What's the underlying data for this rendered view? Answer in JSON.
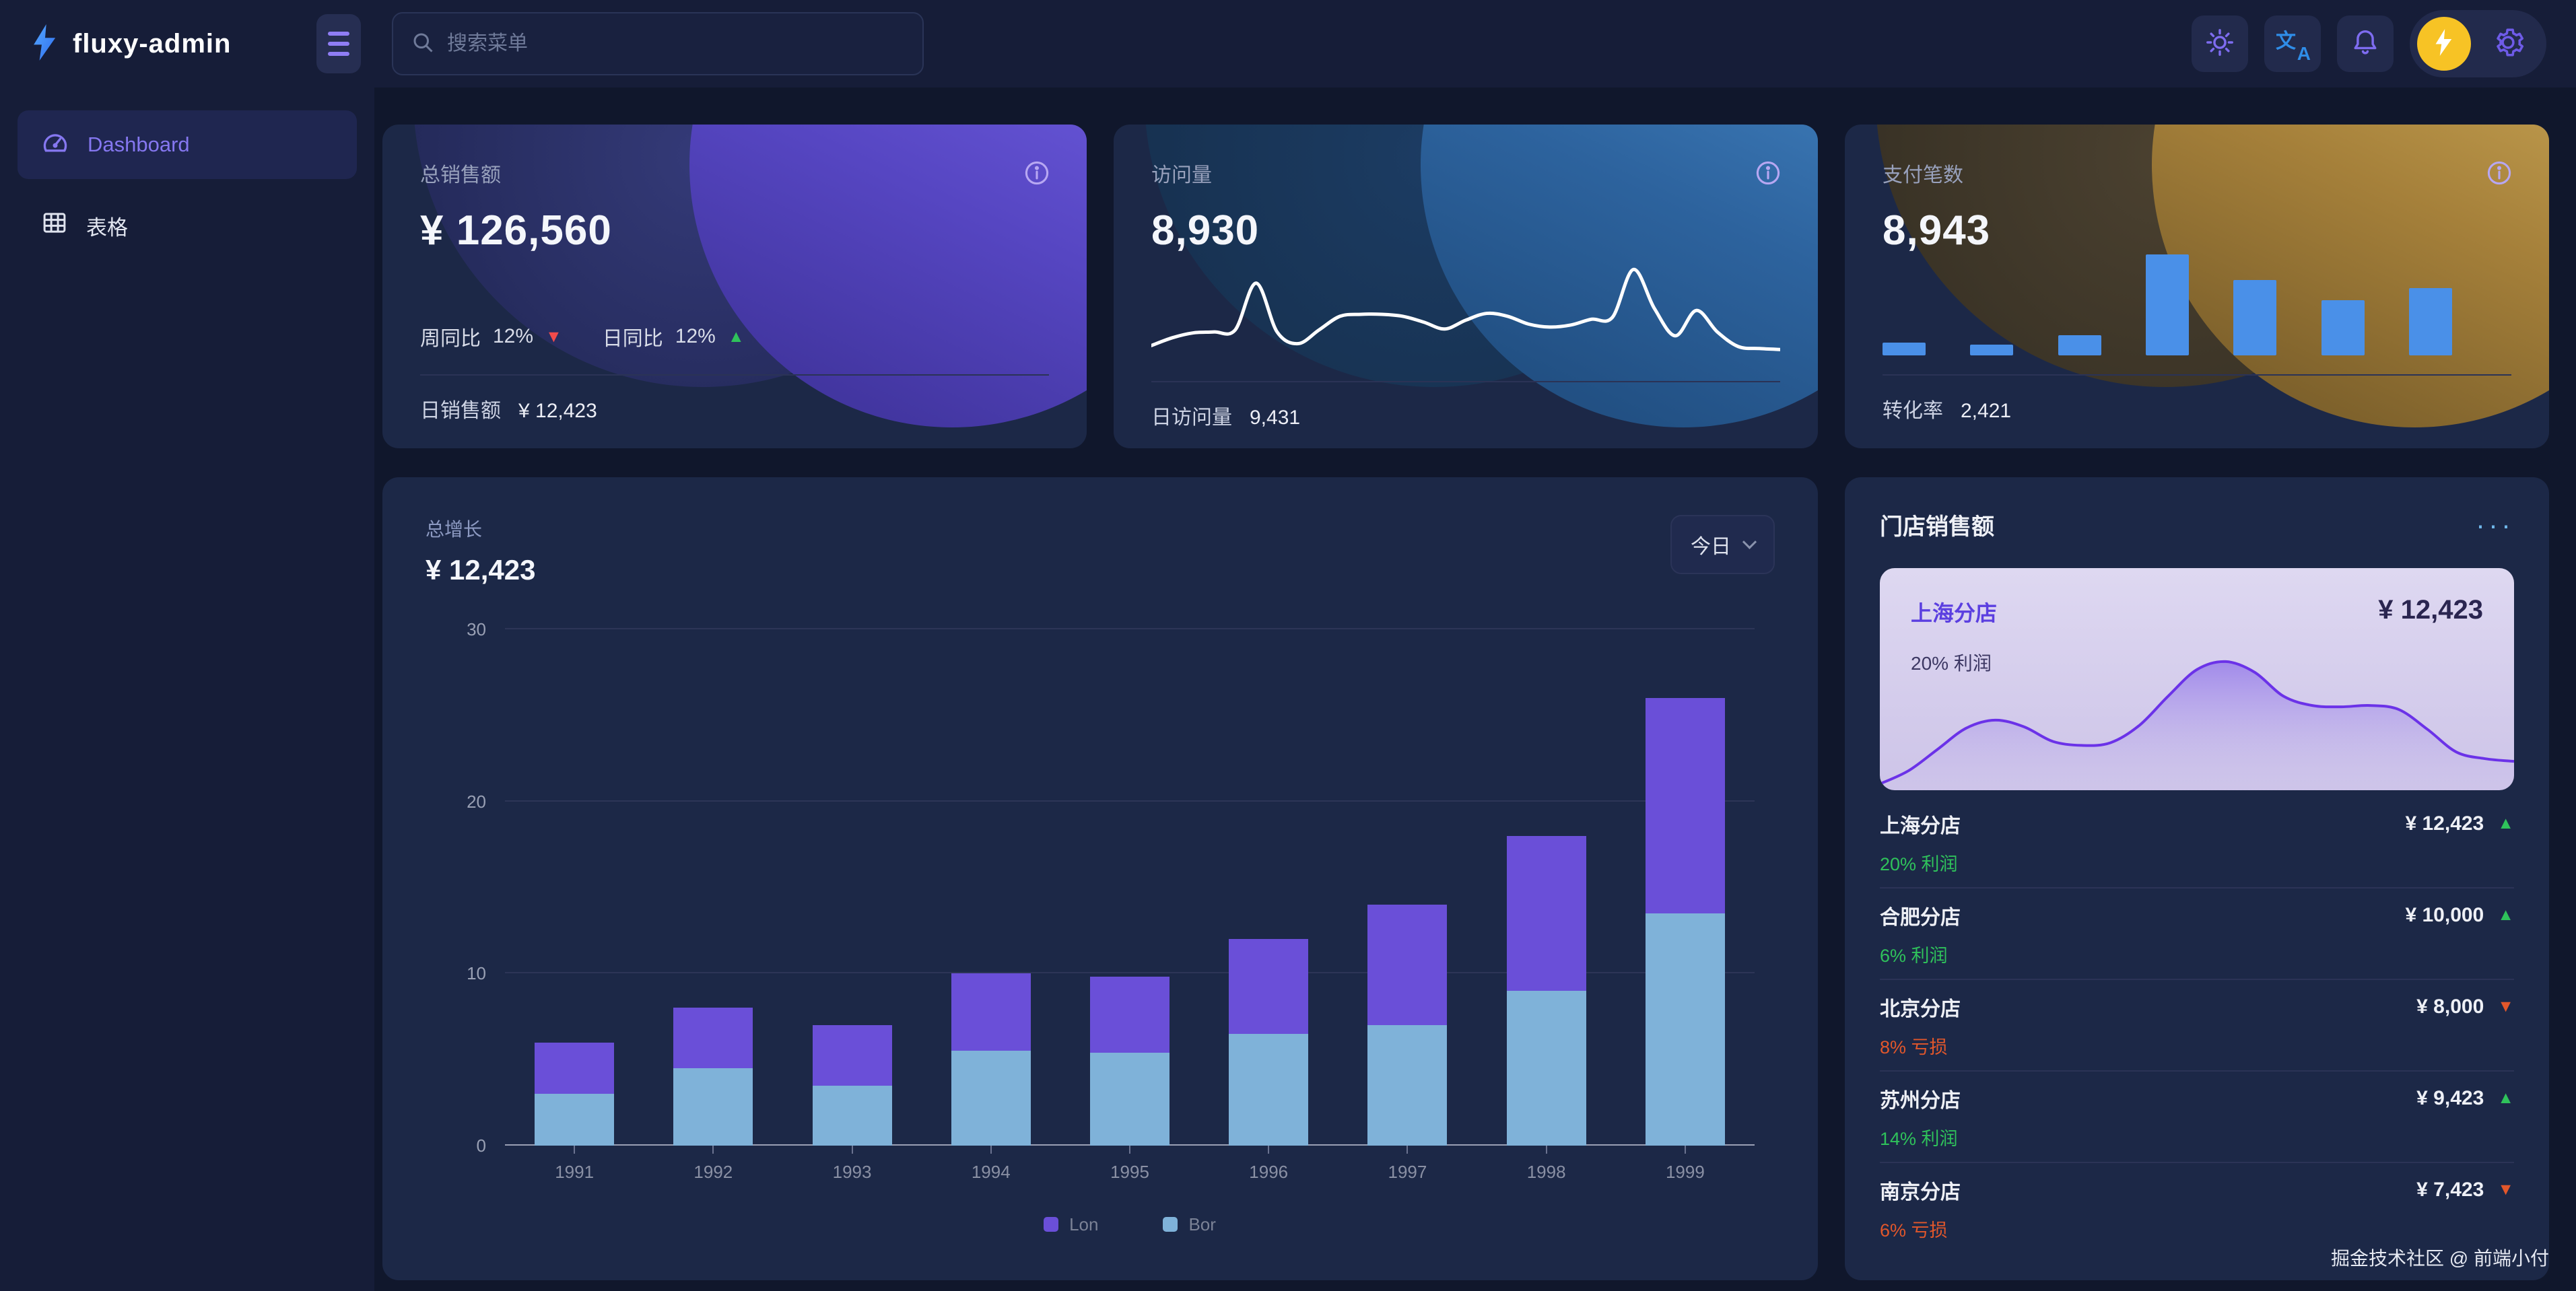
{
  "topbar": {
    "logo_text": "fluxy-admin",
    "search_placeholder": "搜索菜单"
  },
  "sidebar": {
    "items": [
      {
        "label": "Dashboard",
        "icon": "dashboard-gauge-icon",
        "active": true
      },
      {
        "label": "表格",
        "icon": "table-grid-icon",
        "active": false
      }
    ]
  },
  "stat_cards": {
    "sales": {
      "title": "总销售额",
      "value": "¥ 126,560",
      "week_label": "周同比",
      "week_value": "12%",
      "week_arrow": "▼",
      "day_label": "日同比",
      "day_value": "12%",
      "day_arrow": "▲",
      "footer_label": "日销售额",
      "footer_value": "¥ 12,423"
    },
    "visits": {
      "title": "访问量",
      "value": "8,930",
      "footer_label": "日访问量",
      "footer_value": "9,431"
    },
    "payments": {
      "title": "支付笔数",
      "value": "8,943",
      "footer_label": "转化率",
      "footer_value": "2,421"
    }
  },
  "growth": {
    "title": "总增长",
    "value": "¥ 12,423",
    "range_label": "今日"
  },
  "stores": {
    "title": "门店销售额",
    "more_icon": "···",
    "highlight": {
      "name": "上海分店",
      "value": "¥ 12,423",
      "sub": "20% 利润"
    },
    "items": [
      {
        "name": "上海分店",
        "value": "¥ 12,423",
        "trend": "up",
        "sub": "20% 利润",
        "sub_type": "profit"
      },
      {
        "name": "合肥分店",
        "value": "¥ 10,000",
        "trend": "up",
        "sub": "6% 利润",
        "sub_type": "profit"
      },
      {
        "name": "北京分店",
        "value": "¥ 8,000",
        "trend": "down",
        "sub": "8% 亏损",
        "sub_type": "loss"
      },
      {
        "name": "苏州分店",
        "value": "¥ 9,423",
        "trend": "up",
        "sub": "14% 利润",
        "sub_type": "profit"
      },
      {
        "name": "南京分店",
        "value": "¥ 7,423",
        "trend": "down",
        "sub": "6% 亏损",
        "sub_type": "loss"
      }
    ]
  },
  "footer": {
    "credit": "掘金技术社区 @ 前端小付"
  },
  "colors": {
    "accent_purple": "#8577f0",
    "bar_purple": "#6a4fd8",
    "bar_blue": "#7fb2d9",
    "mini_bar_blue": "#4a90e8",
    "up_green": "#2fc25b",
    "down_red": "#f24b4b",
    "loss_orange": "#e2572b",
    "avatar_yellow": "#f7c325",
    "highlight_bg": "#d5cdec"
  },
  "chart_data": [
    {
      "id": "growth_stacked_bar",
      "type": "bar",
      "stacked": true,
      "title": "总增长",
      "categories": [
        "1991",
        "1992",
        "1993",
        "1994",
        "1995",
        "1996",
        "1997",
        "1998",
        "1999"
      ],
      "series": [
        {
          "name": "Lon",
          "color": "#6a4fd8",
          "values": [
            3,
            3.5,
            3.5,
            4.5,
            4.4,
            5.5,
            7,
            9,
            12.5
          ]
        },
        {
          "name": "Bor",
          "color": "#7fb2d9",
          "values": [
            3,
            4.5,
            3.5,
            5.5,
            5.4,
            6.5,
            7,
            9,
            13.5
          ]
        }
      ],
      "ylim": [
        0,
        30
      ],
      "yticks": [
        0,
        10,
        20,
        30
      ],
      "grid": true,
      "legend_position": "bottom"
    },
    {
      "id": "visits_sparkline",
      "type": "line",
      "title": "访问量趋势",
      "color": "#ffffff",
      "y": [
        0.14,
        0.22,
        0.27,
        0.28,
        0.3,
        0.78,
        0.28,
        0.16,
        0.3,
        0.44,
        0.46,
        0.46,
        0.44,
        0.38,
        0.31,
        0.4,
        0.47,
        0.44,
        0.36,
        0.33,
        0.35,
        0.41,
        0.43,
        0.92,
        0.52,
        0.24,
        0.5,
        0.28,
        0.13,
        0.11,
        0.1
      ]
    },
    {
      "id": "payments_bars",
      "type": "bar",
      "title": "支付笔数",
      "color": "#4a90e8",
      "values": [
        13,
        11,
        20,
        100,
        75,
        55,
        67
      ]
    },
    {
      "id": "store_area",
      "type": "area",
      "title": "上海分店销售趋势",
      "stroke": "#6b32e8",
      "fill_from": "#9b82ea",
      "fill_to": "#cfc6ec",
      "y": [
        0.04,
        0.14,
        0.3,
        0.46,
        0.52,
        0.47,
        0.36,
        0.33,
        0.35,
        0.48,
        0.7,
        0.9,
        0.96,
        0.88,
        0.7,
        0.63,
        0.62,
        0.63,
        0.6,
        0.45,
        0.28,
        0.23,
        0.21
      ]
    }
  ]
}
